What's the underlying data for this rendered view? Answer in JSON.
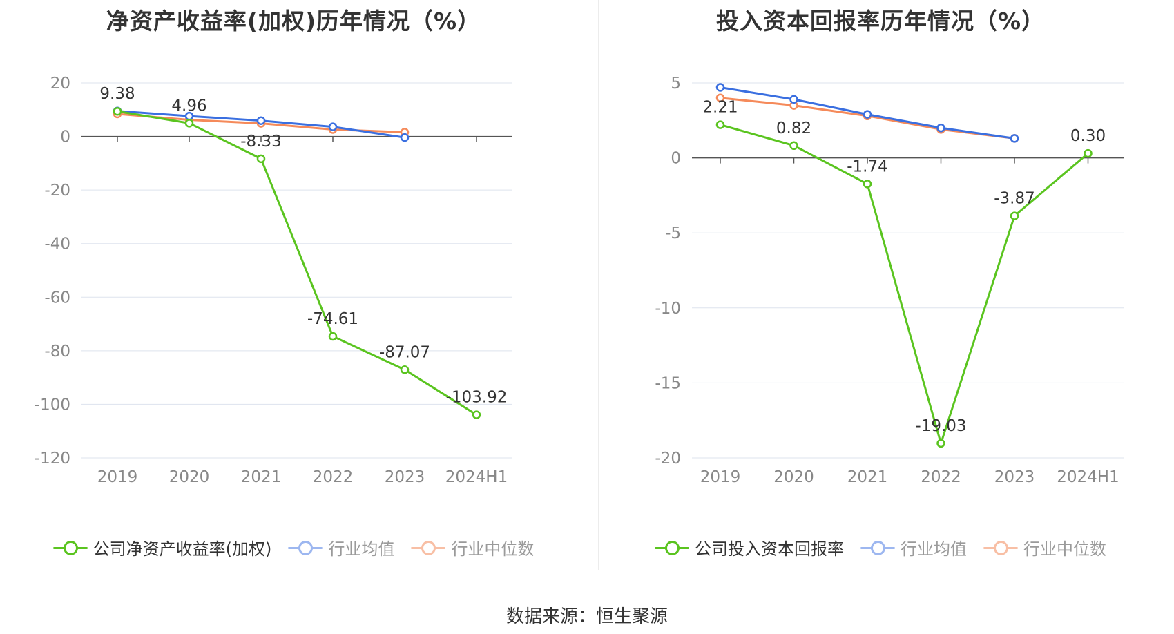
{
  "source": "数据来源：恒生聚源",
  "colors": {
    "company": "#5ac41f",
    "industry_avg": "#3a6fe0",
    "industry_median": "#f58a5a",
    "grid": "#dde3ee",
    "axis": "#555555",
    "tick": "#888888",
    "label": "#333333"
  },
  "chart_data": [
    {
      "type": "line",
      "title": "净资产收益率(加权)历年情况（%）",
      "categories": [
        "2019",
        "2020",
        "2021",
        "2022",
        "2023",
        "2024H1"
      ],
      "ylim": [
        -120,
        20
      ],
      "yticks": [
        20,
        0,
        -20,
        -40,
        -60,
        -80,
        -100,
        -120
      ],
      "ytick_labels": [
        "20",
        "0",
        "-20",
        "-40",
        "-60",
        "-80",
        "-100",
        "-120"
      ],
      "grid": true,
      "legend_position": "bottom",
      "series": [
        {
          "name": "公司净资产收益率(加权)",
          "key": "company",
          "values": [
            9.38,
            4.96,
            -8.33,
            -74.61,
            -87.07,
            -103.92
          ],
          "labels": [
            "9.38",
            "4.96",
            "-8.33",
            "-74.61",
            "-87.07",
            "-103.92"
          ]
        },
        {
          "name": "行业均值",
          "key": "industry_avg",
          "values": [
            9.5,
            7.6,
            5.9,
            3.6,
            -0.4,
            null
          ]
        },
        {
          "name": "行业中位数",
          "key": "industry_median",
          "values": [
            8.4,
            6.2,
            4.9,
            2.6,
            1.6,
            null
          ]
        }
      ]
    },
    {
      "type": "line",
      "title": "投入资本回报率历年情况（%）",
      "categories": [
        "2019",
        "2020",
        "2021",
        "2022",
        "2023",
        "2024H1"
      ],
      "ylim": [
        -20,
        5
      ],
      "yticks": [
        5,
        0,
        -5,
        -10,
        -15,
        -20
      ],
      "ytick_labels": [
        "5",
        "0",
        "-5",
        "-10",
        "-15",
        "-20"
      ],
      "grid": true,
      "legend_position": "bottom",
      "series": [
        {
          "name": "公司投入资本回报率",
          "key": "company",
          "values": [
            2.21,
            0.82,
            -1.74,
            -19.03,
            -3.87,
            0.3
          ],
          "labels": [
            "2.21",
            "0.82",
            "-1.74",
            "-19.03",
            "-3.87",
            "0.30"
          ]
        },
        {
          "name": "行业均值",
          "key": "industry_avg",
          "values": [
            4.7,
            3.9,
            2.9,
            2.0,
            1.3,
            null
          ]
        },
        {
          "name": "行业中位数",
          "key": "industry_median",
          "values": [
            4.0,
            3.5,
            2.8,
            1.9,
            1.3,
            null
          ]
        }
      ]
    }
  ]
}
